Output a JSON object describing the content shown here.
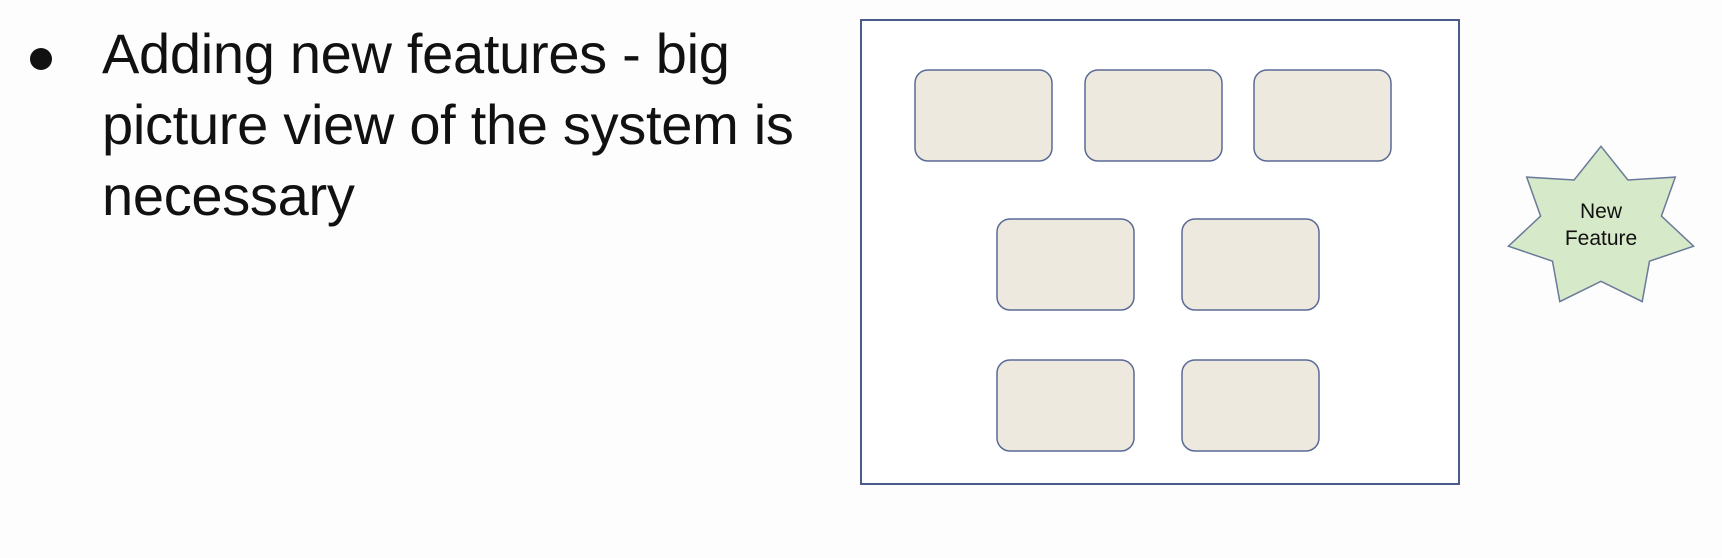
{
  "slide": {
    "bullets": [
      {
        "lines": [
          "Adding new features - big",
          "picture view of the system is",
          "necessary"
        ]
      }
    ]
  },
  "diagram": {
    "modules_count": 7,
    "new_feature": {
      "label_line1": "New",
      "label_line2": "Feature"
    },
    "colors": {
      "system_border": "#4a5a8a",
      "module_fill": "#ede9df",
      "module_border": "#5a6a95",
      "star_fill": "#d6e9c8",
      "star_border": "#6a7a9a"
    }
  }
}
